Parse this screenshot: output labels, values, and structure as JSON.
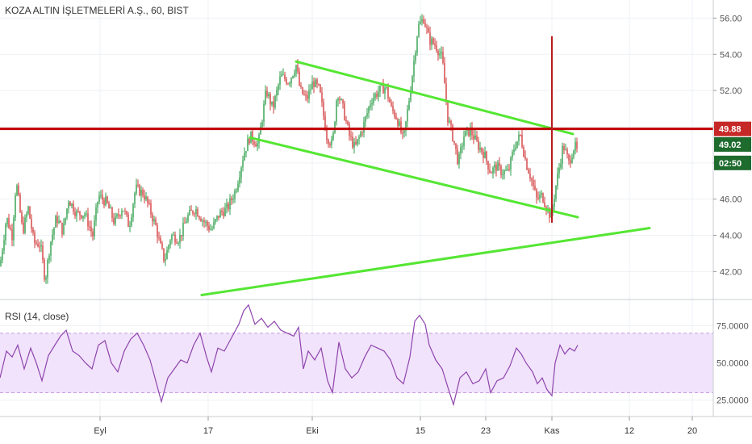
{
  "chart_data": [
    {
      "type": "candlestick",
      "title": "KOZA ALTIN İŞLETMELERİ A.Ş., 60, BIST",
      "y_ticks": [
        "42.00",
        "44.00",
        "46.00",
        "48.00",
        "50.00",
        "52.00",
        "54.00",
        "56.00"
      ],
      "ylim": [
        40.5,
        57.0
      ],
      "x_ticks": [
        "Eyl",
        "17",
        "Eki",
        "15",
        "23",
        "Kas",
        "12",
        "20"
      ],
      "price_labels": [
        {
          "text": "49.88",
          "value": 49.88,
          "color": "#c62828"
        },
        {
          "text": "49.02",
          "value": 49.02,
          "color": "#1e6b2e"
        },
        {
          "text": "02:50",
          "value": 48.0,
          "color": "#1e6b2e"
        }
      ],
      "horizontal_line": {
        "value": 49.88,
        "color": "#c00000"
      },
      "price_path": [
        [
          0,
          42.3
        ],
        [
          8,
          45.0
        ],
        [
          15,
          44.0
        ],
        [
          20,
          47.0
        ],
        [
          28,
          44.2
        ],
        [
          35,
          45.5
        ],
        [
          42,
          43.6
        ],
        [
          50,
          43.5
        ],
        [
          56,
          41.5
        ],
        [
          62,
          43.5
        ],
        [
          70,
          45.0
        ],
        [
          78,
          44.2
        ],
        [
          85,
          46.0
        ],
        [
          95,
          45.2
        ],
        [
          105,
          45.2
        ],
        [
          115,
          44.0
        ],
        [
          122,
          46.2
        ],
        [
          132,
          45.8
        ],
        [
          142,
          44.7
        ],
        [
          152,
          45.6
        ],
        [
          160,
          44.5
        ],
        [
          168,
          46.6
        ],
        [
          178,
          46.3
        ],
        [
          185,
          45.5
        ],
        [
          193,
          44.5
        ],
        [
          198,
          43.5
        ],
        [
          204,
          42.6
        ],
        [
          212,
          44.0
        ],
        [
          222,
          43.8
        ],
        [
          232,
          45.0
        ],
        [
          242,
          45.5
        ],
        [
          252,
          44.8
        ],
        [
          262,
          44.3
        ],
        [
          272,
          45.2
        ],
        [
          282,
          45.5
        ],
        [
          292,
          46.5
        ],
        [
          302,
          48.5
        ],
        [
          310,
          49.5
        ],
        [
          320,
          49.0
        ],
        [
          330,
          52.0
        ],
        [
          338,
          51.0
        ],
        [
          348,
          52.8
        ],
        [
          358,
          52.5
        ],
        [
          367,
          53.4
        ],
        [
          372,
          52.0
        ],
        [
          380,
          51.5
        ],
        [
          388,
          52.5
        ],
        [
          396,
          52.0
        ],
        [
          405,
          49.5
        ],
        [
          412,
          49.0
        ],
        [
          418,
          52.0
        ],
        [
          425,
          51.0
        ],
        [
          433,
          49.5
        ],
        [
          440,
          48.8
        ],
        [
          450,
          50.0
        ],
        [
          460,
          51.5
        ],
        [
          470,
          52.0
        ],
        [
          478,
          52.2
        ],
        [
          485,
          51.0
        ],
        [
          492,
          50.5
        ],
        [
          500,
          49.2
        ],
        [
          510,
          52.5
        ],
        [
          518,
          55.5
        ],
        [
          525,
          56.0
        ],
        [
          532,
          54.8
        ],
        [
          540,
          54.5
        ],
        [
          548,
          53.8
        ],
        [
          555,
          50.5
        ],
        [
          562,
          49.3
        ],
        [
          568,
          48.0
        ],
        [
          575,
          49.5
        ],
        [
          583,
          49.8
        ],
        [
          592,
          49.0
        ],
        [
          600,
          48.5
        ],
        [
          608,
          47.5
        ],
        [
          615,
          47.8
        ],
        [
          622,
          47.5
        ],
        [
          630,
          47.5
        ],
        [
          638,
          49.0
        ],
        [
          645,
          49.5
        ],
        [
          652,
          48.0
        ],
        [
          658,
          47.2
        ],
        [
          665,
          46.0
        ],
        [
          672,
          46.2
        ],
        [
          678,
          45.5
        ],
        [
          683,
          45.0
        ],
        [
          688,
          46.5
        ],
        [
          692,
          47.5
        ],
        [
          698,
          49.0
        ],
        [
          705,
          48.0
        ],
        [
          712,
          49.0
        ],
        [
          716,
          48.5
        ]
      ],
      "trend_lines": [
        {
          "points": [
            [
              367,
              53.6
            ],
            [
              710,
              49.6
            ]
          ],
          "color": "#55e633"
        },
        {
          "points": [
            [
              310,
              49.4
            ],
            [
              716,
              45.0
            ]
          ],
          "color": "#55e633"
        },
        {
          "points": [
            [
              250,
              40.7
            ],
            [
              805,
              44.4
            ]
          ],
          "color": "#55e633"
        }
      ],
      "vertical_marker": {
        "x": 684,
        "from": 44.7,
        "to": 55.0,
        "color": "#b71c1c"
      }
    },
    {
      "type": "line",
      "title": "RSI (14, close)",
      "y_ticks": [
        "25.0000",
        "50.0000",
        "75.0000"
      ],
      "ylim": [
        14,
        91
      ],
      "band": [
        30,
        70
      ],
      "series_color": "#8e44ad",
      "rsi_path": [
        [
          0,
          40
        ],
        [
          8,
          58
        ],
        [
          15,
          54
        ],
        [
          22,
          62
        ],
        [
          30,
          46
        ],
        [
          38,
          60
        ],
        [
          45,
          50
        ],
        [
          52,
          38
        ],
        [
          60,
          55
        ],
        [
          68,
          62
        ],
        [
          75,
          68
        ],
        [
          82,
          72
        ],
        [
          90,
          58
        ],
        [
          98,
          55
        ],
        [
          106,
          50
        ],
        [
          114,
          46
        ],
        [
          122,
          62
        ],
        [
          130,
          65
        ],
        [
          138,
          50
        ],
        [
          146,
          44
        ],
        [
          154,
          58
        ],
        [
          162,
          66
        ],
        [
          170,
          70
        ],
        [
          178,
          62
        ],
        [
          186,
          52
        ],
        [
          194,
          36
        ],
        [
          200,
          24
        ],
        [
          208,
          40
        ],
        [
          216,
          46
        ],
        [
          224,
          52
        ],
        [
          232,
          50
        ],
        [
          240,
          62
        ],
        [
          248,
          70
        ],
        [
          256,
          54
        ],
        [
          262,
          44
        ],
        [
          270,
          60
        ],
        [
          278,
          58
        ],
        [
          286,
          66
        ],
        [
          296,
          76
        ],
        [
          302,
          85
        ],
        [
          308,
          89
        ],
        [
          316,
          76
        ],
        [
          324,
          80
        ],
        [
          332,
          74
        ],
        [
          340,
          78
        ],
        [
          348,
          72
        ],
        [
          356,
          70
        ],
        [
          364,
          68
        ],
        [
          370,
          74
        ],
        [
          376,
          46
        ],
        [
          382,
          58
        ],
        [
          390,
          52
        ],
        [
          398,
          60
        ],
        [
          406,
          38
        ],
        [
          412,
          30
        ],
        [
          420,
          64
        ],
        [
          428,
          46
        ],
        [
          436,
          40
        ],
        [
          444,
          44
        ],
        [
          452,
          54
        ],
        [
          460,
          62
        ],
        [
          468,
          60
        ],
        [
          476,
          58
        ],
        [
          484,
          52
        ],
        [
          492,
          40
        ],
        [
          500,
          36
        ],
        [
          508,
          54
        ],
        [
          514,
          78
        ],
        [
          520,
          82
        ],
        [
          527,
          76
        ],
        [
          532,
          62
        ],
        [
          540,
          52
        ],
        [
          548,
          46
        ],
        [
          556,
          32
        ],
        [
          562,
          22
        ],
        [
          570,
          40
        ],
        [
          578,
          44
        ],
        [
          586,
          36
        ],
        [
          594,
          38
        ],
        [
          602,
          46
        ],
        [
          608,
          30
        ],
        [
          616,
          38
        ],
        [
          624,
          40
        ],
        [
          632,
          48
        ],
        [
          640,
          60
        ],
        [
          646,
          56
        ],
        [
          652,
          50
        ],
        [
          660,
          44
        ],
        [
          666,
          36
        ],
        [
          672,
          40
        ],
        [
          678,
          32
        ],
        [
          684,
          28
        ],
        [
          688,
          50
        ],
        [
          694,
          62
        ],
        [
          700,
          56
        ],
        [
          706,
          60
        ],
        [
          712,
          58
        ],
        [
          716,
          62
        ]
      ]
    }
  ]
}
